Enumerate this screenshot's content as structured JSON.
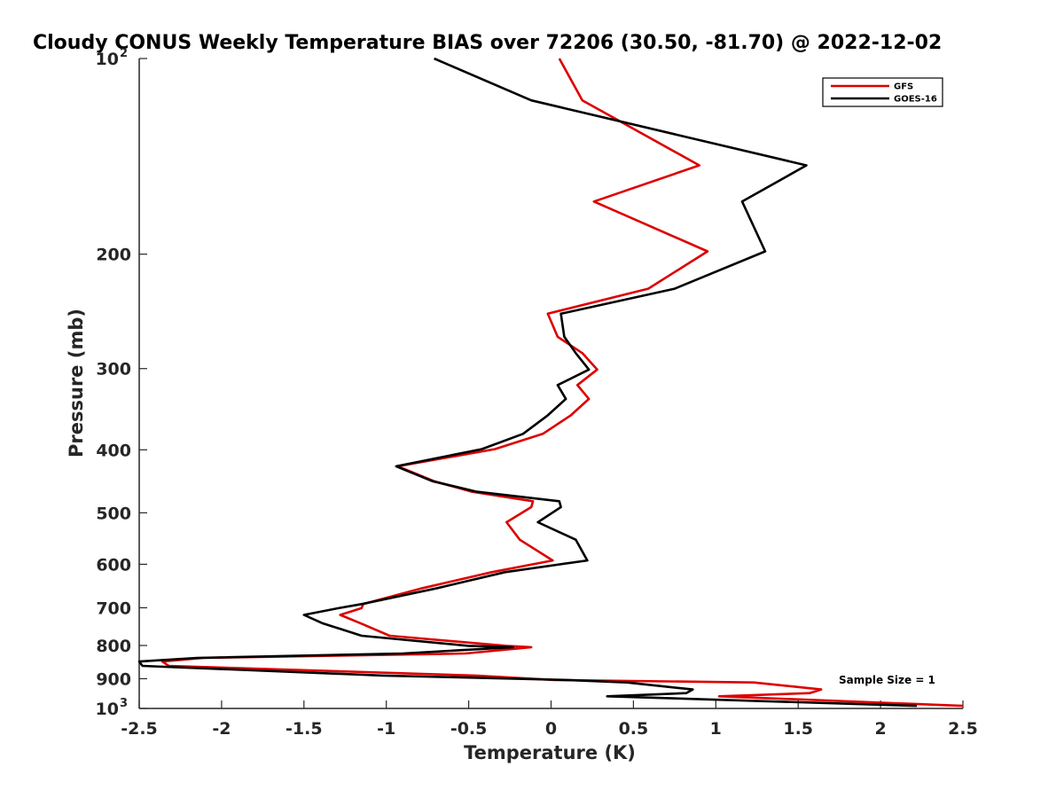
{
  "chart_data": {
    "type": "line",
    "title": "Cloudy CONUS Weekly Temperature BIAS over 72206 (30.50, -81.70) @ 2022-12-02",
    "xlabel": "Temperature (K)",
    "ylabel": "Pressure (mb)",
    "xlim": [
      -2.5,
      2.5
    ],
    "ylim": [
      100,
      1000
    ],
    "y_scale": "log",
    "y_reversed": true,
    "grid": false,
    "legend_position": "top-right",
    "x_ticks": [
      {
        "value": -2.5,
        "label": "-2.5"
      },
      {
        "value": -2,
        "label": "-2"
      },
      {
        "value": -1.5,
        "label": "-1.5"
      },
      {
        "value": -1,
        "label": "-1"
      },
      {
        "value": -0.5,
        "label": "-0.5"
      },
      {
        "value": 0,
        "label": "0"
      },
      {
        "value": 0.5,
        "label": "0.5"
      },
      {
        "value": 1,
        "label": "1"
      },
      {
        "value": 1.5,
        "label": "1.5"
      },
      {
        "value": 2,
        "label": "2"
      },
      {
        "value": 2.5,
        "label": "2.5"
      }
    ],
    "y_ticks": [
      {
        "value": 200,
        "label": "200"
      },
      {
        "value": 300,
        "label": "300"
      },
      {
        "value": 400,
        "label": "400"
      },
      {
        "value": 500,
        "label": "500"
      },
      {
        "value": 600,
        "label": "600"
      },
      {
        "value": 700,
        "label": "700"
      },
      {
        "value": 800,
        "label": "800"
      },
      {
        "value": 900,
        "label": "900"
      }
    ],
    "y_power_ticks": [
      {
        "value": 100,
        "base": "10",
        "exp": "2"
      },
      {
        "value": 1000,
        "base": "10",
        "exp": "3"
      }
    ],
    "annotation": "Sample Size = 1",
    "series": [
      {
        "name": "GFS",
        "color": "#dd0000",
        "points": [
          [
            0.05,
            100
          ],
          [
            0.19,
            116
          ],
          [
            0.9,
            146
          ],
          [
            0.26,
            166
          ],
          [
            0.95,
            198
          ],
          [
            0.59,
            226
          ],
          [
            -0.02,
            247
          ],
          [
            0.04,
            268
          ],
          [
            0.19,
            284
          ],
          [
            0.28,
            301
          ],
          [
            0.16,
            318
          ],
          [
            0.23,
            334
          ],
          [
            0.12,
            354
          ],
          [
            -0.05,
            378
          ],
          [
            -0.34,
            399
          ],
          [
            -0.93,
            424
          ],
          [
            -0.71,
            447
          ],
          [
            -0.48,
            464
          ],
          [
            -0.11,
            480
          ],
          [
            -0.12,
            490
          ],
          [
            -0.27,
            517
          ],
          [
            -0.19,
            550
          ],
          [
            0.01,
            592
          ],
          [
            -0.36,
            617
          ],
          [
            -0.78,
            653
          ],
          [
            -1.14,
            691
          ],
          [
            -1.15,
            701
          ],
          [
            -1.28,
            718
          ],
          [
            -1.16,
            739
          ],
          [
            -0.98,
            773
          ],
          [
            -0.27,
            801
          ],
          [
            -0.12,
            805
          ],
          [
            -0.52,
            823
          ],
          [
            -2.11,
            836
          ],
          [
            -2.36,
            847
          ],
          [
            -2.32,
            860
          ],
          [
            -0.46,
            890
          ],
          [
            0.02,
            904
          ],
          [
            1.23,
            912
          ],
          [
            1.64,
            935
          ],
          [
            1.57,
            947
          ],
          [
            1.02,
            958
          ],
          [
            2.5,
            991
          ]
        ]
      },
      {
        "name": "GOES-16",
        "color": "#000000",
        "points": [
          [
            -0.71,
            100
          ],
          [
            -0.12,
            116
          ],
          [
            1.55,
            146
          ],
          [
            1.16,
            166
          ],
          [
            1.3,
            198
          ],
          [
            0.75,
            226
          ],
          [
            0.06,
            247
          ],
          [
            0.08,
            268
          ],
          [
            0.15,
            284
          ],
          [
            0.23,
            301
          ],
          [
            0.04,
            318
          ],
          [
            0.09,
            334
          ],
          [
            -0.02,
            354
          ],
          [
            -0.17,
            378
          ],
          [
            -0.42,
            399
          ],
          [
            -0.94,
            424
          ],
          [
            -0.72,
            447
          ],
          [
            -0.45,
            464
          ],
          [
            0.05,
            480
          ],
          [
            0.06,
            490
          ],
          [
            -0.08,
            517
          ],
          [
            0.15,
            550
          ],
          [
            0.22,
            592
          ],
          [
            -0.28,
            617
          ],
          [
            -0.69,
            653
          ],
          [
            -1.15,
            691
          ],
          [
            -1.29,
            701
          ],
          [
            -1.5,
            718
          ],
          [
            -1.39,
            739
          ],
          [
            -1.15,
            773
          ],
          [
            -0.5,
            801
          ],
          [
            -0.23,
            805
          ],
          [
            -0.9,
            823
          ],
          [
            -2.15,
            836
          ],
          [
            -2.5,
            847
          ],
          [
            -2.48,
            860
          ],
          [
            -1.02,
            890
          ],
          [
            0.1,
            904
          ],
          [
            0.46,
            912
          ],
          [
            0.86,
            935
          ],
          [
            0.82,
            947
          ],
          [
            0.34,
            958
          ],
          [
            2.22,
            991
          ]
        ]
      }
    ]
  }
}
